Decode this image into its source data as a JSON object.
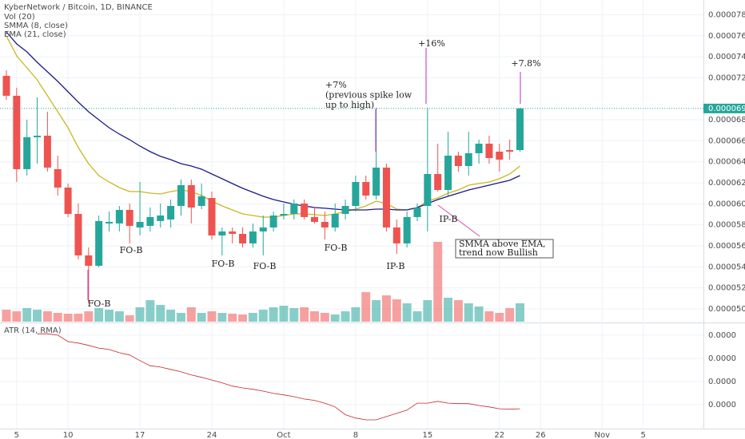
{
  "chart_data": [
    {
      "type": "candlestick",
      "title": "KyberNetwork / Bitcoin, 1D, BINANCE",
      "categories": [
        null,
        "5",
        null,
        null,
        null,
        null,
        "10",
        null,
        null,
        null,
        null,
        null,
        null,
        "17",
        null,
        null,
        null,
        null,
        null,
        null,
        "24",
        null,
        null,
        null,
        null,
        null,
        null,
        "Oct",
        null,
        null,
        null,
        null,
        null,
        null,
        "8",
        null,
        null,
        null,
        null,
        null,
        null,
        "15",
        null,
        null,
        null,
        null,
        null,
        null,
        "22",
        null,
        null,
        null,
        "26",
        null,
        null,
        null,
        null,
        null,
        "Nov",
        null,
        null,
        null,
        "5"
      ],
      "open": [
        7.219e-05,
        7.029e-05,
        6.33e-05,
        6.634e-05,
        6.649e-05,
        6.33e-05,
        6.155e-05,
        5.904e-05,
        5.509e-05,
        5.41e-05,
        5.813e-05,
        5.813e-05,
        5.942e-05,
        5.775e-05,
        5.79e-05,
        5.836e-05,
        5.851e-05,
        5.98e-05,
        6.178e-05,
        5.98e-05,
        6.056e-05,
        5.699e-05,
        5.737e-05,
        5.714e-05,
        5.623e-05,
        5.737e-05,
        5.775e-05,
        5.889e-05,
        5.904e-05,
        6.003e-05,
        5.874e-05,
        5.828e-05,
        5.775e-05,
        5.904e-05,
        5.98e-05,
        6.208e-05,
        6.079e-05,
        6.345e-05,
        5.775e-05,
        5.623e-05,
        5.874e-05,
        5.98e-05,
        6.284e-05,
        6.132e-05,
        6.459e-05,
        6.36e-05,
        6.482e-05,
        6.573e-05,
        6.497e-05,
        6.512e-05,
        6.512e-05,
        null,
        null,
        null,
        null,
        null,
        null,
        null,
        null,
        null,
        null,
        null,
        null
      ],
      "high": [
        7.272e-05,
        7.105e-05,
        6.801e-05,
        7.014e-05,
        6.877e-05,
        6.459e-05,
        6.193e-05,
        6.003e-05,
        5.585e-05,
        5.889e-05,
        5.927e-05,
        5.98e-05,
        6.003e-05,
        6.208e-05,
        5.965e-05,
        6.003e-05,
        6.041e-05,
        6.231e-05,
        6.231e-05,
        6.193e-05,
        6.117e-05,
        5.775e-05,
        5.775e-05,
        5.775e-05,
        5.813e-05,
        5.889e-05,
        5.927e-05,
        6.003e-05,
        6.041e-05,
        6.041e-05,
        5.965e-05,
        5.927e-05,
        6.003e-05,
        6.041e-05,
        6.269e-05,
        6.269e-05,
        6.915e-05,
        6.383e-05,
        5.851e-05,
        5.927e-05,
        6.003e-05,
        6.915e-05,
        6.573e-05,
        6.687e-05,
        6.497e-05,
        6.687e-05,
        6.611e-05,
        6.649e-05,
        6.573e-05,
        6.611e-05,
        6.915e-05,
        null,
        null,
        null,
        null,
        null,
        null,
        null,
        null,
        null,
        null,
        null,
        null
      ],
      "low": [
        6.991e-05,
        6.208e-05,
        6.269e-05,
        6.383e-05,
        6.307e-05,
        6.079e-05,
        5.874e-05,
        5.471e-05,
        5.053e-05,
        5.395e-05,
        5.737e-05,
        5.737e-05,
        5.623e-05,
        5.699e-05,
        5.737e-05,
        5.775e-05,
        5.775e-05,
        5.889e-05,
        5.813e-05,
        5.95e-05,
        5.661e-05,
        5.509e-05,
        5.623e-05,
        5.585e-05,
        5.585e-05,
        5.509e-05,
        5.737e-05,
        5.851e-05,
        5.851e-05,
        5.851e-05,
        5.813e-05,
        5.661e-05,
        5.737e-05,
        5.851e-05,
        5.927e-05,
        6.041e-05,
        6.041e-05,
        5.737e-05,
        5.524e-05,
        5.585e-05,
        5.836e-05,
        5.737e-05,
        6.117e-05,
        6.079e-05,
        6.307e-05,
        6.269e-05,
        6.383e-05,
        6.383e-05,
        6.307e-05,
        6.421e-05,
        6.497e-05,
        null,
        null,
        null,
        null,
        null,
        null,
        null,
        null,
        null,
        null,
        null,
        null
      ],
      "close": [
        7.029e-05,
        6.33e-05,
        6.634e-05,
        6.649e-05,
        6.345e-05,
        6.155e-05,
        5.904e-05,
        5.509e-05,
        5.41e-05,
        5.836e-05,
        5.828e-05,
        5.942e-05,
        5.79e-05,
        5.828e-05,
        5.874e-05,
        5.889e-05,
        5.98e-05,
        6.178e-05,
        5.965e-05,
        6.072e-05,
        5.699e-05,
        5.737e-05,
        5.714e-05,
        5.623e-05,
        5.737e-05,
        5.775e-05,
        5.889e-05,
        5.904e-05,
        6.003e-05,
        5.874e-05,
        5.828e-05,
        5.775e-05,
        5.904e-05,
        5.98e-05,
        6.208e-05,
        6.079e-05,
        6.345e-05,
        5.775e-05,
        5.623e-05,
        5.874e-05,
        5.965e-05,
        6.284e-05,
        6.132e-05,
        6.459e-05,
        6.36e-05,
        6.482e-05,
        6.573e-05,
        6.436e-05,
        6.421e-05,
        6.497e-05,
        6.908e-05,
        null,
        null,
        null,
        null,
        null,
        null,
        null,
        null,
        null,
        null,
        null,
        null
      ],
      "up_color": "#26a69a",
      "down_color": "#ef5350",
      "volume": {
        "name": "Vol (20)",
        "ylim": [
          0,
          100
        ],
        "values": [
          15,
          13,
          17,
          15,
          13,
          11,
          10,
          10,
          13,
          17,
          15,
          13,
          8,
          18,
          27,
          21,
          15,
          11,
          18,
          11,
          13,
          11,
          10,
          9,
          11,
          15,
          18,
          20,
          17,
          18,
          13,
          11,
          9,
          13,
          18,
          37,
          27,
          33,
          28,
          23,
          13,
          27,
          100,
          30,
          27,
          23,
          19,
          13,
          11,
          17,
          23,
          null,
          null,
          null,
          null,
          null,
          null,
          null,
          null,
          null,
          null,
          null,
          null
        ]
      },
      "series": [
        {
          "name": "SMMA (8, close)",
          "color": "#c9b81c",
          "values": [
            7.599e-05,
            7.409e-05,
            7.295e-05,
            7.181e-05,
            7.029e-05,
            6.877e-05,
            6.725e-05,
            6.535e-05,
            6.383e-05,
            6.269e-05,
            6.208e-05,
            6.155e-05,
            6.117e-05,
            6.117e-05,
            6.102e-05,
            6.094e-05,
            6.117e-05,
            6.132e-05,
            6.117e-05,
            6.079e-05,
            6.026e-05,
            5.98e-05,
            5.942e-05,
            5.904e-05,
            5.889e-05,
            5.874e-05,
            5.874e-05,
            5.889e-05,
            5.904e-05,
            5.904e-05,
            5.897e-05,
            5.889e-05,
            5.904e-05,
            5.927e-05,
            5.95e-05,
            5.98e-05,
            6.026e-05,
            6.003e-05,
            5.95e-05,
            5.942e-05,
            5.965e-05,
            6.026e-05,
            6.056e-05,
            6.102e-05,
            6.132e-05,
            6.178e-05,
            6.193e-05,
            6.208e-05,
            6.239e-05,
            6.284e-05,
            6.36e-05,
            null,
            null,
            null,
            null,
            null,
            null,
            null,
            null,
            null,
            null,
            null,
            null
          ]
        },
        {
          "name": "EMA (21, close)",
          "color": "#1a1a8c",
          "values": [
            7.637e-05,
            7.523e-05,
            7.447e-05,
            7.348e-05,
            7.257e-05,
            7.166e-05,
            7.067e-05,
            6.968e-05,
            6.877e-05,
            6.801e-05,
            6.725e-05,
            6.664e-05,
            6.611e-05,
            6.55e-05,
            6.497e-05,
            6.452e-05,
            6.421e-05,
            6.383e-05,
            6.36e-05,
            6.33e-05,
            6.284e-05,
            6.239e-05,
            6.193e-05,
            6.148e-05,
            6.11e-05,
            6.072e-05,
            6.041e-05,
            6.018e-05,
            5.996e-05,
            5.98e-05,
            5.965e-05,
            5.958e-05,
            5.95e-05,
            5.942e-05,
            5.942e-05,
            5.942e-05,
            5.95e-05,
            5.95e-05,
            5.942e-05,
            5.942e-05,
            5.965e-05,
            6.003e-05,
            6.041e-05,
            6.072e-05,
            6.102e-05,
            6.132e-05,
            6.155e-05,
            6.178e-05,
            6.201e-05,
            6.224e-05,
            6.269e-05,
            null,
            null,
            null,
            null,
            null,
            null,
            null,
            null,
            null,
            null,
            null,
            null
          ]
        }
      ],
      "ylim": [
        4.878e-05,
        7.941e-05
      ],
      "yticks": [
        {
          "value": 7.8e-05,
          "label": "0.00007800"
        },
        {
          "value": 7.6e-05,
          "label": "0.00007600"
        },
        {
          "value": 7.4e-05,
          "label": "0.00007400"
        },
        {
          "value": 7.2e-05,
          "label": "0.00007200"
        },
        {
          "value": 6.8e-05,
          "label": "0.00006800"
        },
        {
          "value": 6.6e-05,
          "label": "0.00006600"
        },
        {
          "value": 6.4e-05,
          "label": "0.00006400"
        },
        {
          "value": 6.2e-05,
          "label": "0.00006200"
        },
        {
          "value": 6e-05,
          "label": "0.00006000"
        },
        {
          "value": 5.8e-05,
          "label": "0.00005800"
        },
        {
          "value": 5.6e-05,
          "label": "0.00005600"
        },
        {
          "value": 5.4e-05,
          "label": "0.00005400"
        },
        {
          "value": 5.2e-05,
          "label": "0.00005200"
        },
        {
          "value": 5e-05,
          "label": "0.00005000"
        }
      ],
      "last_price": {
        "value": 6.908e-05,
        "label": "0.00006908"
      },
      "grid": true,
      "annotations": [
        {
          "text": "+16%"
        },
        {
          "text": "+7.8%"
        },
        {
          "lines": [
            "+7%",
            "(previous spike low",
            "up to high)"
          ]
        },
        {
          "text": "FO-B"
        },
        {
          "text": "FO-B"
        },
        {
          "text": "FO-B"
        },
        {
          "text": "FO-B"
        },
        {
          "text": "FO-B"
        },
        {
          "text": "IP-B"
        },
        {
          "text": "IP-B"
        },
        {
          "lines": [
            "SMMA above EMA,",
            "trend now Bullish"
          ]
        }
      ]
    },
    {
      "type": "line",
      "title": "ATR (14, RMA)",
      "color": "#c62828",
      "values": [
        null,
        null,
        null,
        4.53e-06,
        4.53e-06,
        4.5e-06,
        4.36e-06,
        4.33e-06,
        4.28e-06,
        4.22e-06,
        4.19e-06,
        4.12e-06,
        4.07e-06,
        3.95e-06,
        3.84e-06,
        3.81e-06,
        3.76e-06,
        3.71e-06,
        3.64e-06,
        3.59e-06,
        3.53e-06,
        3.47e-06,
        3.4e-06,
        3.36e-06,
        3.33e-06,
        3.29e-06,
        3.24e-06,
        3.21e-06,
        3.17e-06,
        3.12e-06,
        3.09e-06,
        3.03e-06,
        2.95e-06,
        2.78e-06,
        2.71e-06,
        2.67e-06,
        2.67e-06,
        2.74e-06,
        2.81e-06,
        2.88e-06,
        3.03e-06,
        3.03e-06,
        3.07e-06,
        3.03e-06,
        3.02e-06,
        3.02e-06,
        2.98e-06,
        2.95e-06,
        2.91e-06,
        2.9e-06,
        2.91e-06,
        null,
        null,
        null,
        null,
        null,
        null,
        null,
        null,
        null,
        null,
        null,
        null
      ],
      "ylim": [
        2.48e-06,
        4.74e-06
      ],
      "yticks": [
        {
          "value": 4.5e-06,
          "label": "0.0000"
        },
        {
          "value": 4e-06,
          "label": "0.0000"
        },
        {
          "value": 3.5e-06,
          "label": "0.0000"
        },
        {
          "value": 3e-06,
          "label": "0.0000"
        }
      ],
      "grid": true
    }
  ]
}
